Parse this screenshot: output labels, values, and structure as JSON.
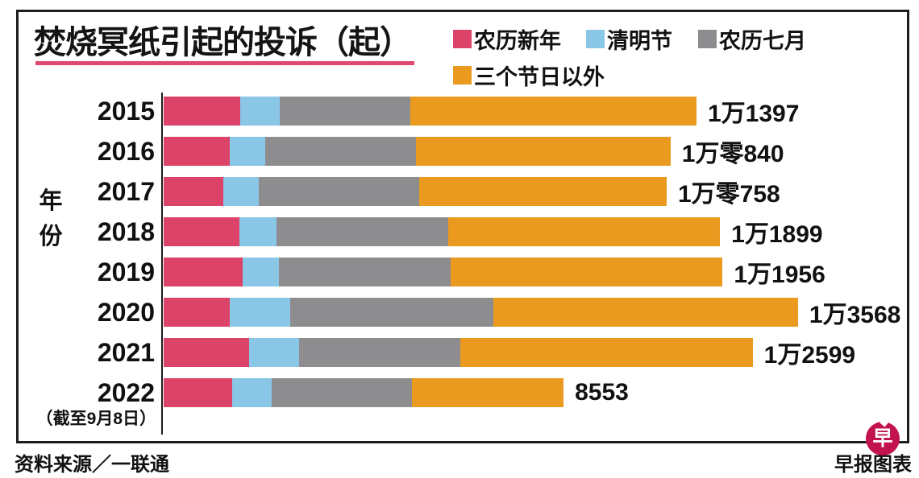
{
  "title": "焚烧冥纸引起的投诉（起）",
  "accent_underline_color": "#e0486e",
  "legend": [
    {
      "label": "农历新年",
      "color": "#dc4368"
    },
    {
      "label": "清明节",
      "color": "#8ac6e6"
    },
    {
      "label": "农历七月",
      "color": "#8d8d8f"
    },
    {
      "label": "三个节日以外",
      "color": "#ea9a1e"
    }
  ],
  "y_axis": {
    "label_line1": "年",
    "label_line2": "份"
  },
  "chart_data": {
    "type": "bar",
    "orientation": "horizontal",
    "stacked": true,
    "title": "焚烧冥纸引起的投诉（起）",
    "ylabel": "年份",
    "legend_position": "top-right",
    "grid": false,
    "categories": [
      "2015",
      "2016",
      "2017",
      "2018",
      "2019",
      "2020",
      "2021",
      "2022"
    ],
    "category_note": {
      "category": "2022",
      "note": "（截至9月8日）"
    },
    "series": [
      {
        "name": "农历新年",
        "color": "#dc4368",
        "values": [
          1640,
          1415,
          1275,
          1620,
          1695,
          1410,
          1820,
          1465
        ]
      },
      {
        "name": "清明节",
        "color": "#8ac6e6",
        "values": [
          845,
          760,
          760,
          795,
          780,
          1290,
          1085,
          845
        ]
      },
      {
        "name": "农历七月",
        "color": "#8d8d8f",
        "values": [
          2795,
          3220,
          3430,
          3675,
          3660,
          4350,
          3440,
          2995
        ]
      },
      {
        "name": "三个节日以外",
        "color": "#ea9a1e",
        "values": [
          6117,
          5445,
          5293,
          5809,
          5821,
          6518,
          6254,
          3248
        ]
      }
    ],
    "segment_values_estimated_from_pixels": true,
    "totals": [
      11397,
      10840,
      10758,
      11899,
      11956,
      13568,
      12599,
      8553
    ],
    "total_labels": [
      "1万1397",
      "1万零840",
      "1万零758",
      "1万1899",
      "1万1956",
      "1万3568",
      "1万2599",
      "8553"
    ]
  },
  "footer": {
    "source": "资料来源／一联通",
    "credit": "早报图表",
    "logo_char": "早",
    "logo_color": "#c2134d"
  }
}
